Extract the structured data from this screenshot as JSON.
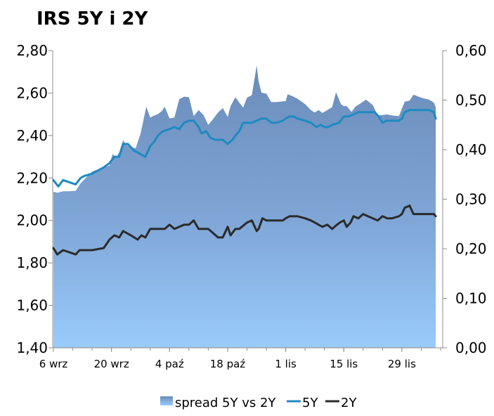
{
  "chart_data": {
    "type": "line",
    "title": "IRS 5Y i 2Y",
    "y_left": {
      "range": [
        1.4,
        2.8
      ],
      "ticks": [
        "1,40",
        "1,60",
        "1,80",
        "2,00",
        "2,20",
        "2,40",
        "2,60",
        "2,80"
      ]
    },
    "y_right": {
      "range": [
        0.0,
        0.6
      ],
      "ticks": [
        "0,00",
        "0,10",
        "0,20",
        "0,30",
        "0,40",
        "0,50",
        "0,60"
      ]
    },
    "x_range": [
      0,
      40
    ],
    "x_ticks": [
      {
        "x": 0,
        "label": "6 wrz"
      },
      {
        "x": 6,
        "label": "20 wrz"
      },
      {
        "x": 12,
        "label": "4 paź"
      },
      {
        "x": 18,
        "label": "18 paź"
      },
      {
        "x": 24,
        "label": "1 lis"
      },
      {
        "x": 30,
        "label": "15 lis"
      },
      {
        "x": 36,
        "label": "29 lis"
      }
    ],
    "legend_position": "bottom",
    "series": [
      {
        "name": "spread 5Y vs 2Y",
        "axis": "right",
        "type": "area",
        "color": "#7f9fc8",
        "x": [
          0,
          0.4,
          1,
          1.5,
          2.3,
          2.8,
          3.2,
          4,
          5,
          5.8,
          6.1,
          6.5,
          6.8,
          7.2,
          7.5,
          8,
          8.5,
          9,
          9.6,
          10,
          10.3,
          10.8,
          11.2,
          11.5,
          12,
          12.5,
          13,
          13.5,
          14,
          14.5,
          15,
          15.5,
          16,
          16.5,
          17,
          17.5,
          18,
          18.3,
          18.8,
          19.2,
          19.6,
          20,
          20.5,
          21,
          21.2,
          21.5,
          22,
          22.5,
          23,
          24,
          24.2,
          24.7,
          25.2,
          26,
          26.6,
          27,
          27.4,
          27.8,
          28.3,
          28.8,
          29.2,
          29.7,
          30,
          30.3,
          30.8,
          31.2,
          31.7,
          32.3,
          33,
          33.5,
          34,
          34.5,
          35,
          35.7,
          36,
          36.3,
          36.8,
          37.2,
          38,
          38.8,
          39.3,
          39.5
        ],
        "values": [
          0.315,
          0.313,
          0.316,
          0.316,
          0.317,
          0.332,
          0.34,
          0.356,
          0.363,
          0.368,
          0.391,
          0.385,
          0.395,
          0.419,
          0.41,
          0.405,
          0.403,
          0.432,
          0.487,
          0.465,
          0.468,
          0.472,
          0.478,
          0.487,
          0.463,
          0.465,
          0.502,
          0.507,
          0.506,
          0.468,
          0.48,
          0.47,
          0.45,
          0.462,
          0.475,
          0.484,
          0.466,
          0.488,
          0.506,
          0.495,
          0.485,
          0.505,
          0.51,
          0.57,
          0.538,
          0.515,
          0.513,
          0.496,
          0.496,
          0.498,
          0.512,
          0.508,
          0.503,
          0.492,
          0.48,
          0.475,
          0.48,
          0.474,
          0.48,
          0.486,
          0.516,
          0.492,
          0.488,
          0.488,
          0.476,
          0.487,
          0.493,
          0.501,
          0.49,
          0.469,
          0.47,
          0.471,
          0.469,
          0.468,
          0.483,
          0.497,
          0.499,
          0.511,
          0.505,
          0.501,
          0.495,
          0.486
        ]
      },
      {
        "name": "5Y",
        "axis": "left",
        "type": "line",
        "color": "#1f8ac0",
        "x": [
          0,
          0.5,
          1,
          2.3,
          2.8,
          3.2,
          4,
          5.2,
          5.8,
          6.3,
          6.8,
          7.2,
          7.7,
          8.3,
          9.5,
          10,
          10.4,
          10.8,
          11.3,
          12,
          12.5,
          13,
          13.5,
          14,
          14.5,
          15,
          15.3,
          15.8,
          16.2,
          16.7,
          17.5,
          18,
          18.5,
          18.8,
          19.2,
          19.6,
          20,
          20.5,
          21,
          21.5,
          22,
          22.5,
          23,
          23.7,
          24,
          24.4,
          24.8,
          25.2,
          26,
          26.6,
          27.2,
          27.6,
          28,
          28.4,
          28.8,
          29.5,
          30,
          30.5,
          31,
          31.5,
          32,
          32.5,
          33.2,
          33.6,
          34,
          34.4,
          35,
          35.7,
          36,
          36.3,
          36.8,
          37.2,
          38,
          38.8,
          39.3,
          39.5
        ],
        "values": [
          2.19,
          2.16,
          2.19,
          2.17,
          2.2,
          2.21,
          2.22,
          2.25,
          2.27,
          2.3,
          2.3,
          2.36,
          2.36,
          2.33,
          2.3,
          2.35,
          2.37,
          2.4,
          2.42,
          2.43,
          2.44,
          2.43,
          2.46,
          2.47,
          2.47,
          2.44,
          2.41,
          2.42,
          2.39,
          2.38,
          2.38,
          2.36,
          2.38,
          2.4,
          2.42,
          2.46,
          2.46,
          2.46,
          2.47,
          2.48,
          2.48,
          2.46,
          2.46,
          2.47,
          2.48,
          2.49,
          2.49,
          2.48,
          2.47,
          2.46,
          2.44,
          2.45,
          2.44,
          2.44,
          2.45,
          2.46,
          2.49,
          2.49,
          2.5,
          2.51,
          2.51,
          2.51,
          2.51,
          2.49,
          2.46,
          2.47,
          2.47,
          2.47,
          2.48,
          2.51,
          2.52,
          2.52,
          2.52,
          2.52,
          2.51,
          2.48
        ]
      },
      {
        "name": "2Y",
        "axis": "left",
        "type": "line",
        "color": "#2b2b2b",
        "x": [
          0,
          0.4,
          1,
          2.3,
          2.7,
          4,
          5.2,
          5.8,
          6.3,
          6.8,
          7.2,
          8,
          8.7,
          9.1,
          9.5,
          10,
          10.5,
          11,
          11.5,
          12,
          12.5,
          13,
          13.5,
          14,
          14.5,
          15,
          15.5,
          16,
          16.5,
          17,
          17.5,
          18,
          18.3,
          18.8,
          19.2,
          20,
          20.5,
          21,
          21.2,
          21.6,
          22,
          22.5,
          23,
          23.7,
          24,
          24.4,
          24.8,
          25.2,
          26,
          26.6,
          27,
          27.4,
          27.8,
          28.3,
          28.8,
          29.3,
          29.6,
          30,
          30.3,
          30.7,
          31,
          31.5,
          32,
          32.5,
          33,
          33.5,
          34,
          34.5,
          35,
          35.7,
          36,
          36.3,
          36.8,
          37.2,
          38,
          38.8,
          39.3,
          39.5
        ],
        "values": [
          1.87,
          1.84,
          1.86,
          1.84,
          1.86,
          1.86,
          1.87,
          1.91,
          1.93,
          1.92,
          1.95,
          1.93,
          1.91,
          1.93,
          1.92,
          1.96,
          1.96,
          1.96,
          1.96,
          1.98,
          1.96,
          1.97,
          1.98,
          1.98,
          2.0,
          1.96,
          1.96,
          1.96,
          1.94,
          1.92,
          1.92,
          1.97,
          1.93,
          1.96,
          1.96,
          1.99,
          2.0,
          1.95,
          1.96,
          2.01,
          2.0,
          2.0,
          2.0,
          2.0,
          2.01,
          2.02,
          2.02,
          2.02,
          2.01,
          2.0,
          1.99,
          1.98,
          1.97,
          1.98,
          1.96,
          1.98,
          1.99,
          2.0,
          1.97,
          1.99,
          2.02,
          2.01,
          2.03,
          2.02,
          2.01,
          2.0,
          2.02,
          2.01,
          2.01,
          2.02,
          2.03,
          2.06,
          2.07,
          2.03,
          2.03,
          2.03,
          2.03,
          2.02
        ]
      }
    ]
  }
}
